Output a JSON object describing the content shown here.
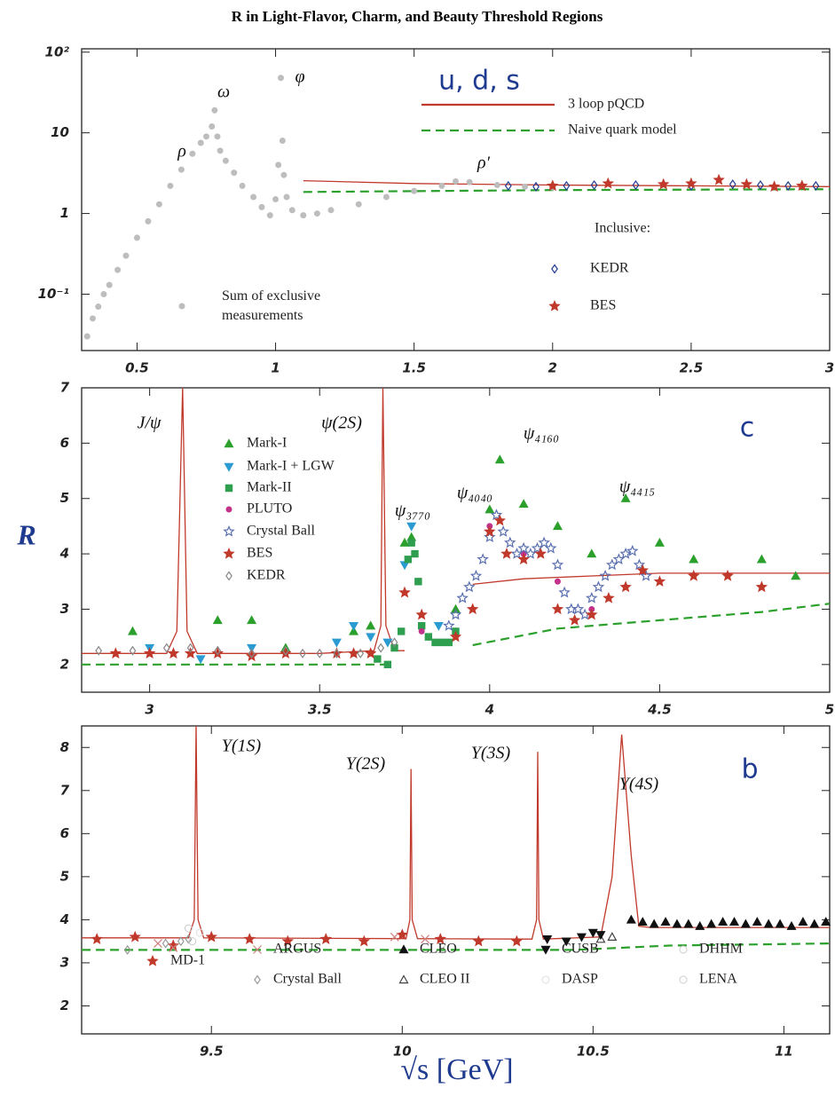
{
  "chart_data": [
    {
      "type": "scatter",
      "title": "R in Light-Flavor, Charm, and Beauty Threshold Regions",
      "xlim": [
        0.3,
        3
      ],
      "xticks": [
        0.5,
        1,
        1.5,
        2,
        2.5,
        3
      ],
      "ylim": [
        0.02,
        110
      ],
      "yscale": "log",
      "yticks": [
        {
          "value": 100,
          "label": "10²"
        },
        10,
        1,
        {
          "value": 0.1,
          "label": "10⁻¹"
        }
      ],
      "annotations": [
        "ρ",
        "ω",
        "φ",
        "ρ′",
        "u, d, s",
        "Inclusive:"
      ],
      "series": [
        {
          "name": "3 loop pQCD",
          "color": "#c0392b",
          "style": "line",
          "x": [
            1.1,
            1.5,
            2,
            2.5,
            3
          ],
          "values": [
            2.55,
            2.35,
            2.25,
            2.2,
            2.15
          ]
        },
        {
          "name": "Naive quark model",
          "color": "#2ca02c",
          "style": "dashed",
          "x": [
            1.1,
            2,
            3
          ],
          "values": [
            1.85,
            1.95,
            2.0
          ]
        },
        {
          "name": "Sum of exclusive measurements",
          "color": "#bdbdbd",
          "style": "circle",
          "x": [
            0.32,
            0.34,
            0.36,
            0.38,
            0.4,
            0.43,
            0.46,
            0.5,
            0.54,
            0.58,
            0.62,
            0.66,
            0.7,
            0.73,
            0.75,
            0.77,
            0.78,
            0.79,
            0.8,
            0.82,
            0.85,
            0.88,
            0.92,
            0.95,
            0.98,
            1.0,
            1.01,
            1.019,
            1.025,
            1.03,
            1.04,
            1.06,
            1.1,
            1.15,
            1.2,
            1.3,
            1.4,
            1.5,
            1.6,
            1.65,
            1.7,
            1.8,
            1.9,
            2.0
          ],
          "values": [
            0.03,
            0.05,
            0.07,
            0.1,
            0.13,
            0.2,
            0.3,
            0.5,
            0.8,
            1.3,
            2.2,
            3.5,
            5.5,
            7.5,
            9,
            12,
            19,
            9,
            6,
            4.5,
            3.2,
            2.2,
            1.6,
            1.2,
            0.95,
            1.5,
            4,
            48,
            8,
            3,
            1.6,
            1.1,
            0.95,
            1.0,
            1.1,
            1.3,
            1.6,
            1.9,
            2.2,
            2.5,
            2.45,
            2.25,
            2.15,
            2.1
          ]
        },
        {
          "name": "KEDR",
          "color": "#1f3b8f",
          "style": "diamond",
          "x": [
            1.84,
            1.94,
            2.05,
            2.15,
            2.3,
            2.5,
            2.65,
            2.75,
            2.85,
            2.95
          ],
          "values": [
            2.2,
            2.15,
            2.2,
            2.25,
            2.25,
            2.2,
            2.3,
            2.25,
            2.2,
            2.2
          ]
        },
        {
          "name": "BES",
          "color": "#c0392b",
          "style": "star",
          "x": [
            2.0,
            2.2,
            2.4,
            2.5,
            2.6,
            2.7,
            2.8,
            2.9
          ],
          "values": [
            2.2,
            2.35,
            2.3,
            2.35,
            2.6,
            2.3,
            2.15,
            2.2
          ]
        }
      ]
    },
    {
      "type": "scatter",
      "ylabel": "R",
      "xlim": [
        2.8,
        5
      ],
      "xticks": [
        3,
        3.5,
        4,
        4.5,
        5
      ],
      "ylim": [
        1.5,
        7
      ],
      "yticks": [
        2,
        3,
        4,
        5,
        6,
        7
      ],
      "annotations": [
        "J/ψ",
        "ψ(2S)",
        "ψ₃₇₇₀",
        "ψ₄₀₄₀",
        "ψ₄₁₆₀",
        "ψ₄₄₁₅",
        "c"
      ],
      "series": [
        {
          "color": "#c0392b",
          "style": "line",
          "x": [
            2.8,
            3.05,
            3.08,
            3.097,
            3.11,
            3.14,
            3.5,
            3.66,
            3.68,
            3.686,
            3.695,
            3.72,
            3.75,
            3.85,
            3.95,
            4.1,
            4.3,
            4.5,
            5
          ],
          "values": [
            2.2,
            2.2,
            2.6,
            7,
            2.6,
            2.2,
            2.2,
            2.25,
            2.7,
            7,
            2.7,
            2.25,
            2.25,
            null,
            3.45,
            3.55,
            3.6,
            3.65,
            3.65
          ]
        },
        {
          "color": "#2ca02c",
          "style": "dashed",
          "x": [
            2.8,
            3.7,
            3.8,
            3.95,
            4.2,
            4.5,
            4.8,
            5
          ],
          "values": [
            2.0,
            2.0,
            null,
            2.35,
            2.65,
            2.8,
            2.95,
            3.1
          ]
        },
        {
          "name": "Mark-I",
          "color": "#2ca02c",
          "style": "triangle",
          "x": [
            2.95,
            3.2,
            3.3,
            3.4,
            3.6,
            3.65,
            3.75,
            3.77,
            3.9,
            4.0,
            4.03,
            4.1,
            4.2,
            4.3,
            4.4,
            4.5,
            4.6,
            4.8,
            4.9
          ],
          "values": [
            2.6,
            2.8,
            2.8,
            2.3,
            2.6,
            2.7,
            4.2,
            4.3,
            3.0,
            4.8,
            5.7,
            4.9,
            4.5,
            4.0,
            5.0,
            4.2,
            3.9,
            3.9,
            3.6
          ]
        },
        {
          "name": "Mark-I + LGW",
          "color": "#2b9bd1",
          "style": "triangle-down",
          "x": [
            3.0,
            3.15,
            3.3,
            3.55,
            3.6,
            3.65,
            3.7,
            3.75,
            3.77,
            3.85
          ],
          "values": [
            2.3,
            2.1,
            2.3,
            2.4,
            2.7,
            2.5,
            2.4,
            3.8,
            4.5,
            2.7
          ]
        },
        {
          "name": "Mark-II",
          "color": "#2e9e4f",
          "style": "square",
          "x": [
            3.67,
            3.7,
            3.72,
            3.74,
            3.76,
            3.77,
            3.78,
            3.79,
            3.8,
            3.82,
            3.84,
            3.86,
            3.88,
            3.9
          ],
          "values": [
            2.1,
            2.0,
            2.3,
            2.6,
            3.9,
            4.2,
            4.0,
            3.5,
            2.7,
            2.5,
            2.4,
            2.4,
            2.4,
            2.6
          ]
        },
        {
          "name": "PLUTO",
          "color": "#c2328a",
          "style": "circle",
          "x": [
            3.6,
            3.8,
            4.0,
            4.1,
            4.2,
            4.3
          ],
          "values": [
            2.2,
            2.6,
            4.5,
            4.0,
            3.5,
            3.0
          ]
        },
        {
          "name": "Crystal Ball",
          "color": "#5a6fb0",
          "style": "open-star",
          "x": [
            3.88,
            3.9,
            3.92,
            3.94,
            3.96,
            3.98,
            4.0,
            4.02,
            4.04,
            4.06,
            4.08,
            4.1,
            4.12,
            4.14,
            4.16,
            4.18,
            4.2,
            4.22,
            4.24,
            4.26,
            4.28,
            4.3,
            4.32,
            4.34,
            4.36,
            4.38,
            4.4,
            4.42,
            4.44,
            4.46
          ],
          "values": [
            2.7,
            2.9,
            3.2,
            3.4,
            3.6,
            3.9,
            4.3,
            4.7,
            4.4,
            4.2,
            4.0,
            4.1,
            4.0,
            4.1,
            4.2,
            4.1,
            3.8,
            3.3,
            3.0,
            3.0,
            2.9,
            3.2,
            3.4,
            3.6,
            3.8,
            3.9,
            4.0,
            4.05,
            3.8,
            3.6
          ]
        },
        {
          "name": "BES",
          "color": "#c0392b",
          "style": "star",
          "x": [
            2.9,
            3.0,
            3.07,
            3.12,
            3.2,
            3.3,
            3.4,
            3.55,
            3.6,
            3.65,
            3.75,
            3.8,
            3.9,
            3.95,
            4.0,
            4.03,
            4.05,
            4.1,
            4.15,
            4.2,
            4.25,
            4.3,
            4.35,
            4.4,
            4.45,
            4.5,
            4.6,
            4.7,
            4.8
          ],
          "values": [
            2.2,
            2.2,
            2.2,
            2.2,
            2.2,
            2.15,
            2.2,
            2.2,
            2.2,
            2.2,
            3.3,
            2.9,
            2.5,
            3.0,
            4.4,
            4.6,
            4.0,
            3.9,
            4.0,
            3.0,
            2.8,
            2.9,
            3.2,
            3.4,
            3.7,
            3.5,
            3.6,
            3.6,
            3.4
          ]
        },
        {
          "name": "KEDR",
          "color": "#888888",
          "style": "diamond",
          "x": [
            2.85,
            2.95,
            3.05,
            3.12,
            3.2,
            3.3,
            3.4,
            3.45,
            3.5,
            3.55,
            3.62,
            3.68,
            3.72
          ],
          "values": [
            2.25,
            2.25,
            2.3,
            2.3,
            2.25,
            2.2,
            2.25,
            2.2,
            2.2,
            2.2,
            2.2,
            2.3,
            2.4
          ]
        }
      ]
    },
    {
      "type": "scatter",
      "xlabel": "√s [GeV]",
      "xlim": [
        9.16,
        11.12
      ],
      "xticks": [
        9.5,
        10,
        10.5,
        11
      ],
      "ylim": [
        1.35,
        8.5
      ],
      "yticks": [
        2,
        3,
        4,
        5,
        6,
        7,
        8
      ],
      "annotations": [
        "Υ(1S)",
        "Υ(2S)",
        "Υ(3S)",
        "Υ(4S)",
        "b"
      ],
      "series": [
        {
          "color": "#c0392b",
          "style": "line",
          "x": [
            9.16,
            9.44,
            9.455,
            9.46,
            9.465,
            9.48,
            10.01,
            10.02,
            10.023,
            10.026,
            10.04,
            10.34,
            10.352,
            10.355,
            10.358,
            10.37,
            10.52,
            10.55,
            10.575,
            10.6,
            10.62,
            10.65,
            11.12
          ],
          "values": [
            3.58,
            3.58,
            4.0,
            8.5,
            4.0,
            3.58,
            3.56,
            4.0,
            7.5,
            4.0,
            3.56,
            3.55,
            4.0,
            7.9,
            4.0,
            3.55,
            3.6,
            5.0,
            8.3,
            5.5,
            3.85,
            3.82,
            3.82
          ]
        },
        {
          "color": "#2ca02c",
          "style": "dashed",
          "x": [
            9.16,
            10.45,
            10.7,
            11.12
          ],
          "values": [
            3.3,
            3.3,
            3.4,
            3.45
          ]
        },
        {
          "name": "MD-1",
          "color": "#c0392b",
          "style": "star",
          "x": [
            9.2,
            9.3,
            9.4,
            9.5,
            9.6,
            9.7,
            9.8,
            9.9,
            10.0,
            10.1,
            10.2,
            10.3
          ],
          "values": [
            3.55,
            3.6,
            3.4,
            3.6,
            3.55,
            3.5,
            3.55,
            3.5,
            3.65,
            3.55,
            3.5,
            3.5
          ]
        },
        {
          "name": "ARGUS",
          "color": "#d08080",
          "style": "cross",
          "x": [
            9.36,
            9.4,
            9.98,
            10.06
          ],
          "values": [
            3.45,
            3.35,
            3.6,
            3.55
          ]
        },
        {
          "name": "Crystal Ball",
          "color": "#999999",
          "style": "diamond",
          "x": [
            9.28,
            9.38,
            9.42,
            9.44
          ],
          "values": [
            3.3,
            3.45,
            3.5,
            3.55
          ]
        },
        {
          "name": "CLEO",
          "color": "#111111",
          "style": "triangle",
          "x": [
            10.6,
            10.63,
            10.66,
            10.69,
            10.72,
            10.75,
            10.78,
            10.81,
            10.84,
            10.87,
            10.9,
            10.93,
            10.96,
            10.99,
            11.02,
            11.05,
            11.08,
            11.11
          ],
          "values": [
            4.0,
            3.95,
            3.9,
            3.95,
            3.9,
            3.9,
            3.85,
            3.9,
            3.95,
            3.95,
            3.9,
            3.95,
            3.9,
            3.9,
            3.85,
            3.95,
            3.9,
            3.95
          ]
        },
        {
          "name": "CLEO II",
          "color": "#444444",
          "style": "open-triangle",
          "x": [
            10.52,
            10.55
          ],
          "values": [
            3.55,
            3.6
          ]
        },
        {
          "name": "CUSB",
          "color": "#111111",
          "style": "triangle-down",
          "x": [
            10.38,
            10.43,
            10.47,
            10.5,
            10.52
          ],
          "values": [
            3.55,
            3.5,
            3.6,
            3.7,
            3.65
          ]
        },
        {
          "name": "DASP",
          "color": "#dddddd",
          "style": "open-circle",
          "x": [
            9.47
          ],
          "values": [
            3.7
          ]
        },
        {
          "name": "DHHM",
          "color": "#cccccc",
          "style": "open-circle",
          "x": [
            9.44
          ],
          "values": [
            3.8
          ]
        },
        {
          "name": "LENA",
          "color": "#cccccc",
          "style": "open-circle",
          "x": [
            9.45
          ],
          "values": [
            3.5
          ]
        }
      ]
    }
  ]
}
